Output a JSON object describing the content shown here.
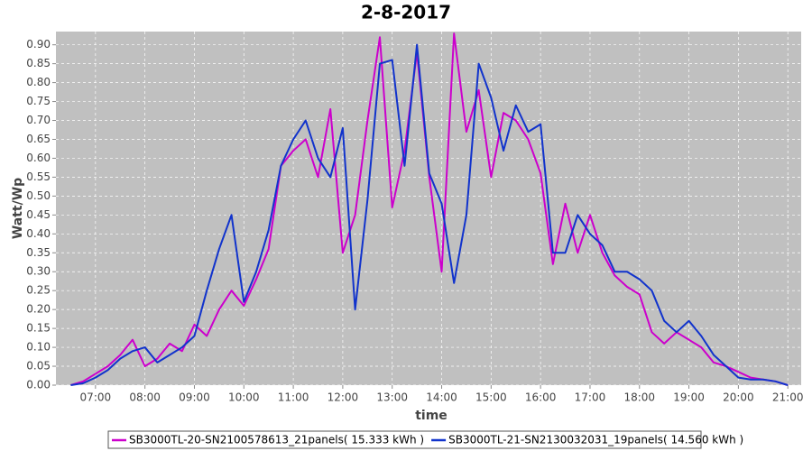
{
  "chart_data": {
    "type": "line",
    "title": "2-8-2017",
    "xlabel": "time",
    "ylabel": "Watt/Wp",
    "x": [
      6.5,
      6.75,
      7,
      7.25,
      7.5,
      7.75,
      8,
      8.25,
      8.5,
      8.75,
      9,
      9.25,
      9.5,
      9.75,
      10,
      10.25,
      10.5,
      10.75,
      11,
      11.25,
      11.5,
      11.75,
      12,
      12.25,
      12.5,
      12.75,
      13,
      13.25,
      13.5,
      13.75,
      14,
      14.25,
      14.5,
      14.75,
      15,
      15.25,
      15.5,
      15.75,
      16,
      16.25,
      16.5,
      16.75,
      17,
      17.25,
      17.5,
      17.75,
      18,
      18.25,
      18.5,
      18.75,
      19,
      19.25,
      19.5,
      19.75,
      20,
      20.25,
      20.5,
      20.75,
      21
    ],
    "series": [
      {
        "name": "SB3000TL-20-SN2100578613_21panels( 15.333 kWh )",
        "color": "#cc00cc",
        "values": [
          0,
          0.01,
          0.03,
          0.05,
          0.08,
          0.12,
          0.05,
          0.07,
          0.11,
          0.09,
          0.16,
          0.13,
          0.2,
          0.25,
          0.21,
          0.28,
          0.36,
          0.58,
          0.62,
          0.65,
          0.55,
          0.73,
          0.35,
          0.45,
          0.7,
          0.92,
          0.47,
          0.62,
          0.88,
          0.55,
          0.3,
          0.93,
          0.67,
          0.78,
          0.55,
          0.72,
          0.7,
          0.65,
          0.56,
          0.32,
          0.48,
          0.35,
          0.45,
          0.35,
          0.29,
          0.26,
          0.24,
          0.14,
          0.11,
          0.14,
          0.12,
          0.1,
          0.06,
          0.05,
          0.035,
          0.02,
          0.015,
          0.01,
          0
        ]
      },
      {
        "name": "SB3000TL-21-SN2130032031_19panels( 14.560 kWh )",
        "color": "#1133cc",
        "values": [
          0,
          0.005,
          0.02,
          0.04,
          0.07,
          0.09,
          0.1,
          0.06,
          0.08,
          0.1,
          0.13,
          0.25,
          0.36,
          0.45,
          0.22,
          0.3,
          0.41,
          0.58,
          0.65,
          0.7,
          0.6,
          0.55,
          0.68,
          0.2,
          0.49,
          0.85,
          0.86,
          0.58,
          0.9,
          0.56,
          0.48,
          0.27,
          0.45,
          0.85,
          0.76,
          0.62,
          0.74,
          0.67,
          0.69,
          0.35,
          0.35,
          0.45,
          0.4,
          0.37,
          0.3,
          0.3,
          0.28,
          0.25,
          0.17,
          0.14,
          0.17,
          0.13,
          0.08,
          0.05,
          0.02,
          0.015,
          0.015,
          0.01,
          0
        ]
      }
    ],
    "xlim": [
      6.2,
      21.27
    ],
    "xticks": [
      {
        "value": 7,
        "label": "07:00"
      },
      {
        "value": 8,
        "label": "08:00"
      },
      {
        "value": 9,
        "label": "09:00"
      },
      {
        "value": 10,
        "label": "10:00"
      },
      {
        "value": 11,
        "label": "11:00"
      },
      {
        "value": 12,
        "label": "12:00"
      },
      {
        "value": 13,
        "label": "13:00"
      },
      {
        "value": 14,
        "label": "14:00"
      },
      {
        "value": 15,
        "label": "15:00"
      },
      {
        "value": 16,
        "label": "16:00"
      },
      {
        "value": 17,
        "label": "17:00"
      },
      {
        "value": 18,
        "label": "18:00"
      },
      {
        "value": 19,
        "label": "19:00"
      },
      {
        "value": 20,
        "label": "20:00"
      },
      {
        "value": 21,
        "label": "21:00"
      }
    ],
    "ylim": [
      0,
      0.935
    ],
    "yticks": [
      {
        "value": 0,
        "label": "0.00"
      },
      {
        "value": 0.05,
        "label": "0.05"
      },
      {
        "value": 0.1,
        "label": "0.10"
      },
      {
        "value": 0.15,
        "label": "0.15"
      },
      {
        "value": 0.2,
        "label": "0.20"
      },
      {
        "value": 0.25,
        "label": "0.25"
      },
      {
        "value": 0.3,
        "label": "0.30"
      },
      {
        "value": 0.35,
        "label": "0.35"
      },
      {
        "value": 0.4,
        "label": "0.40"
      },
      {
        "value": 0.45,
        "label": "0.45"
      },
      {
        "value": 0.5,
        "label": "0.50"
      },
      {
        "value": 0.55,
        "label": "0.55"
      },
      {
        "value": 0.6,
        "label": "0.60"
      },
      {
        "value": 0.65,
        "label": "0.65"
      },
      {
        "value": 0.7,
        "label": "0.70"
      },
      {
        "value": 0.75,
        "label": "0.75"
      },
      {
        "value": 0.8,
        "label": "0.80"
      },
      {
        "value": 0.85,
        "label": "0.85"
      },
      {
        "value": 0.9,
        "label": "0.90"
      }
    ],
    "grid": true,
    "legend": "bottom"
  }
}
